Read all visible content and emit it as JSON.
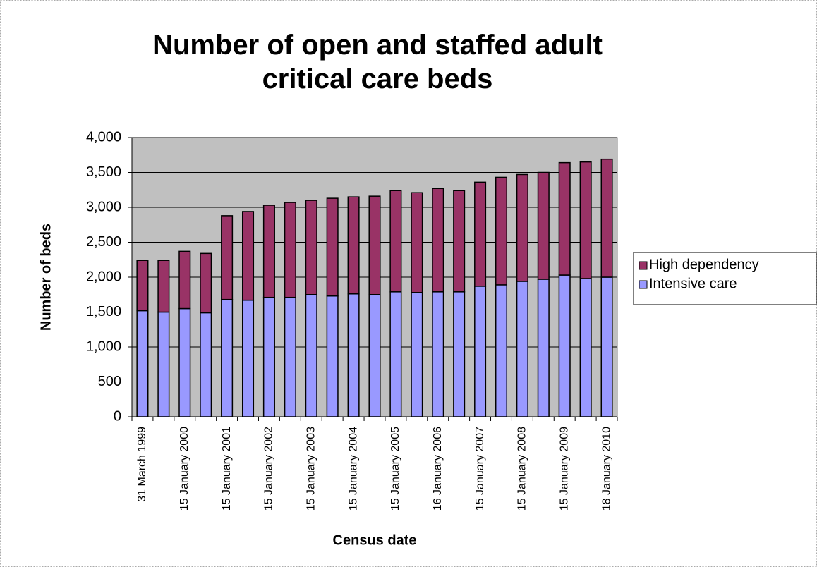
{
  "chart_data": {
    "type": "stacked-bar",
    "title": "Number of open and staffed adult critical care beds",
    "x_label": "Census date",
    "y_label": "Number of beds",
    "categories": [
      "31 March 1999",
      null,
      "15 January 2000",
      null,
      "15 January 2001",
      null,
      "15 January 2002",
      null,
      "15 January 2003",
      null,
      "15 January 2004",
      null,
      "15 January 2005",
      null,
      "16 January 2006",
      null,
      "15 January 2007",
      null,
      "15 January 2008",
      null,
      "15 January 2009",
      null,
      "18 January 2010"
    ],
    "series": [
      {
        "name": "Intensive care",
        "color": "#9999ff",
        "values": [
          1520,
          1500,
          1550,
          1490,
          1680,
          1670,
          1710,
          1710,
          1750,
          1730,
          1760,
          1750,
          1790,
          1780,
          1790,
          1790,
          1870,
          1890,
          1940,
          1970,
          2030,
          1980,
          2000
        ]
      },
      {
        "name": "High dependency",
        "color": "#993366",
        "values": [
          720,
          740,
          820,
          850,
          1200,
          1270,
          1320,
          1360,
          1350,
          1400,
          1390,
          1410,
          1450,
          1430,
          1480,
          1450,
          1490,
          1540,
          1530,
          1530,
          1610,
          1670,
          1690
        ]
      }
    ],
    "ylim": [
      0,
      4000
    ],
    "yticks": [
      0,
      500,
      {
        "value": 1000,
        "label": "1,000"
      },
      {
        "value": 1500,
        "label": "1,500"
      },
      {
        "value": 2000,
        "label": "2,000"
      },
      {
        "value": 2500,
        "label": "2,500"
      },
      {
        "value": 3000,
        "label": "3,000"
      },
      {
        "value": 3500,
        "label": "3,500"
      },
      {
        "value": 4000,
        "label": "4,000"
      }
    ],
    "grid": true,
    "legend": "right"
  }
}
